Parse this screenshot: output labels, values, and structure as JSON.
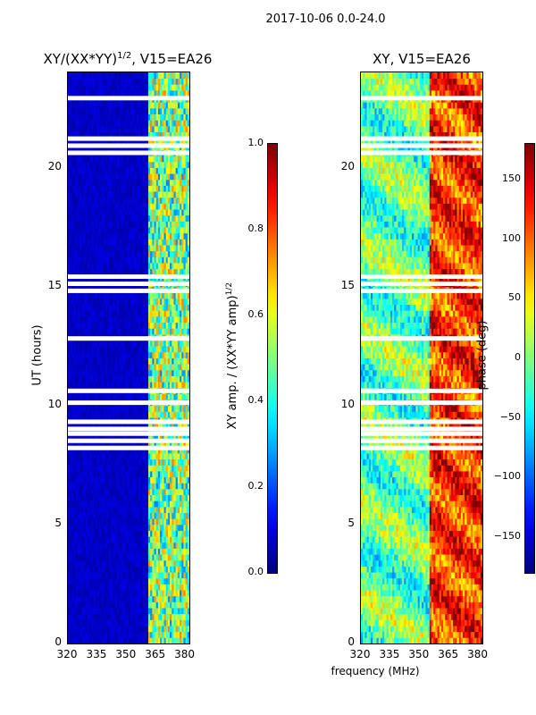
{
  "header": {
    "suptitle": "2017-10-06 0.0-24.0",
    "left_title": "XY/(XX*YY)",
    "left_title_exp": "1/2",
    "left_title_tail": ", V15=EA26",
    "right_title": "XY, V15=EA26",
    "xlabel_common": "frequency (MHz)",
    "ylabel_left": "UT (hours)",
    "cbar_left_label": "XY amp. / (XX*YY amp)",
    "cbar_left_label_exp": "1/2",
    "cbar_right_label": "phase (deg)"
  },
  "chart_data": [
    {
      "type": "heatmap",
      "title": "XY/(XX*YY)^1/2, V15=EA26",
      "xlabel": "",
      "ylabel": "UT (hours)",
      "xlim": [
        320,
        382
      ],
      "ylim": [
        0,
        24
      ],
      "xticks": [
        320,
        335,
        350,
        365,
        380
      ],
      "xtick_labels": [
        "320",
        "335",
        "350",
        "365",
        "380"
      ],
      "yticks": [
        0,
        5,
        10,
        15,
        20
      ],
      "ytick_labels": [
        "0",
        "5",
        "10",
        "15",
        "20"
      ],
      "colormap": "jet",
      "clim": [
        0.0,
        1.0
      ],
      "colorbar_ticks": [
        "0.0",
        "0.2",
        "0.4",
        "0.6",
        "0.8",
        "1.0"
      ],
      "colorbar_label": "XY amp. / (XX*YY amp)^1/2",
      "description_of_values": "low (~0.05) below 360 MHz, bright bands 0.3-0.7 between 361-382 MHz",
      "flagged_ut_hours": [
        8.2,
        8.5,
        8.8,
        9.0,
        9.3,
        10.1,
        10.6,
        12.8,
        14.8,
        15.1,
        15.4,
        20.6,
        20.9,
        21.2,
        22.9
      ]
    },
    {
      "type": "heatmap",
      "title": "XY, V15=EA26",
      "xlabel": "frequency (MHz)",
      "ylabel": "",
      "xlim": [
        320,
        382
      ],
      "ylim": [
        0,
        24
      ],
      "xticks": [
        320,
        335,
        350,
        365,
        380
      ],
      "xtick_labels": [
        "320",
        "335",
        "350",
        "365",
        "380"
      ],
      "yticks": [
        0,
        5,
        10,
        15,
        20
      ],
      "ytick_labels": [
        "0",
        "5",
        "10",
        "15",
        "20"
      ],
      "colormap": "jet",
      "clim": [
        -180,
        180
      ],
      "colorbar_ticks": [
        "−150",
        "−100",
        "−50",
        "0",
        "50",
        "100",
        "150"
      ],
      "colorbar_label": "phase (deg)",
      "description_of_values": "phase varies strongly; blue/cyan near 320-355 MHz, red/orange near 355-382 MHz",
      "flagged_ut_hours": [
        8.2,
        8.5,
        8.8,
        9.0,
        9.3,
        10.1,
        10.6,
        12.8,
        14.8,
        15.1,
        15.4,
        20.6,
        20.9,
        21.2,
        22.9
      ]
    }
  ]
}
